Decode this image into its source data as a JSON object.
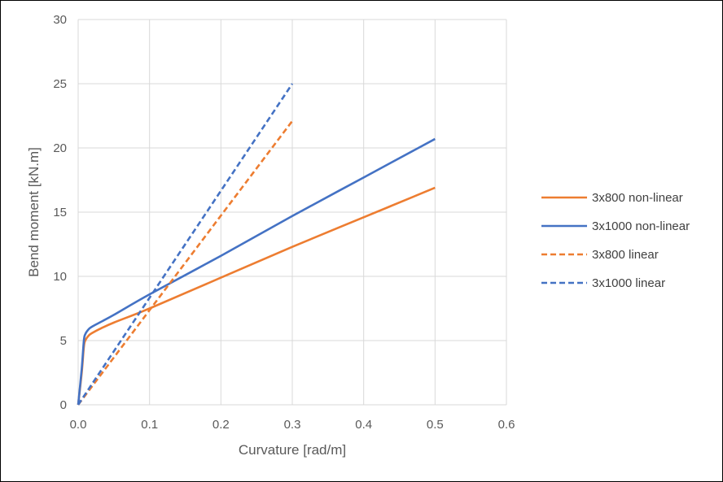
{
  "chart_data": {
    "type": "line",
    "title": "",
    "xlabel": "Curvature [rad/m]",
    "ylabel": "Bend moment [kN.m]",
    "xlim": [
      0,
      0.6
    ],
    "ylim": [
      0,
      30
    ],
    "x_ticks": [
      "0.0",
      "0.1",
      "0.2",
      "0.3",
      "0.4",
      "0.5",
      "0.6"
    ],
    "y_ticks": [
      "0",
      "5",
      "10",
      "15",
      "20",
      "25",
      "30"
    ],
    "grid": true,
    "legend_position": "right",
    "series": [
      {
        "name": "3x800 non-linear",
        "color": "#ED7D31",
        "dash": "solid",
        "points": [
          [
            0,
            0
          ],
          [
            0.005,
            2.5
          ],
          [
            0.008,
            4.5
          ],
          [
            0.01,
            5.0
          ],
          [
            0.015,
            5.4
          ],
          [
            0.02,
            5.6
          ],
          [
            0.03,
            5.9
          ],
          [
            0.05,
            6.4
          ],
          [
            0.1,
            7.5
          ],
          [
            0.2,
            9.9
          ],
          [
            0.3,
            12.3
          ],
          [
            0.4,
            14.6
          ],
          [
            0.5,
            16.9
          ]
        ]
      },
      {
        "name": "3x1000 non-linear",
        "color": "#4472C4",
        "dash": "solid",
        "points": [
          [
            0,
            0
          ],
          [
            0.005,
            2.8
          ],
          [
            0.008,
            5.0
          ],
          [
            0.01,
            5.5
          ],
          [
            0.015,
            5.9
          ],
          [
            0.02,
            6.1
          ],
          [
            0.03,
            6.4
          ],
          [
            0.05,
            7.0
          ],
          [
            0.1,
            8.6
          ],
          [
            0.2,
            11.6
          ],
          [
            0.3,
            14.7
          ],
          [
            0.4,
            17.7
          ],
          [
            0.5,
            20.7
          ]
        ]
      },
      {
        "name": "3x800 linear",
        "color": "#ED7D31",
        "dash": "dashed",
        "points": [
          [
            0,
            0
          ],
          [
            0.3,
            22.1
          ]
        ]
      },
      {
        "name": "3x1000 linear",
        "color": "#4472C4",
        "dash": "dashed",
        "points": [
          [
            0,
            0
          ],
          [
            0.3,
            25.0
          ]
        ]
      }
    ]
  }
}
